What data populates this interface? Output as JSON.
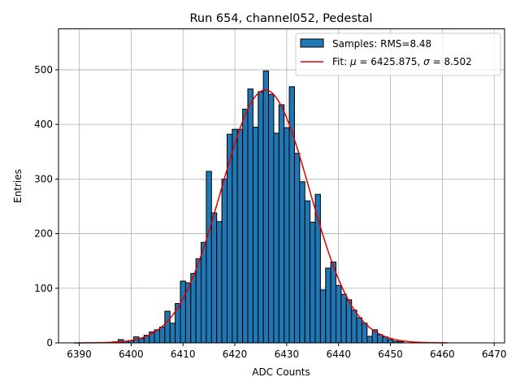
{
  "chart_data": {
    "type": "bar",
    "title": "Run 654, channel052, Pedestal",
    "xlabel": "ADC Counts",
    "ylabel": "Entries",
    "xlim": [
      6386.0,
      6472.0
    ],
    "ylim": [
      0,
      575
    ],
    "xticks": [
      6390,
      6400,
      6410,
      6420,
      6430,
      6440,
      6450,
      6460,
      6470
    ],
    "yticks": [
      0,
      100,
      200,
      300,
      400,
      500
    ],
    "grid": true,
    "legend_position": "top-right",
    "bin_width": 1,
    "bins": [
      {
        "x": 6397,
        "y": 2
      },
      {
        "x": 6398,
        "y": 6
      },
      {
        "x": 6399,
        "y": 3
      },
      {
        "x": 6400,
        "y": 4
      },
      {
        "x": 6401,
        "y": 11
      },
      {
        "x": 6402,
        "y": 8
      },
      {
        "x": 6403,
        "y": 14
      },
      {
        "x": 6404,
        "y": 20
      },
      {
        "x": 6405,
        "y": 24
      },
      {
        "x": 6406,
        "y": 29
      },
      {
        "x": 6407,
        "y": 58
      },
      {
        "x": 6408,
        "y": 36
      },
      {
        "x": 6409,
        "y": 72
      },
      {
        "x": 6410,
        "y": 113
      },
      {
        "x": 6411,
        "y": 110
      },
      {
        "x": 6412,
        "y": 127
      },
      {
        "x": 6413,
        "y": 154
      },
      {
        "x": 6414,
        "y": 184
      },
      {
        "x": 6415,
        "y": 314
      },
      {
        "x": 6416,
        "y": 238
      },
      {
        "x": 6417,
        "y": 222
      },
      {
        "x": 6418,
        "y": 300
      },
      {
        "x": 6419,
        "y": 382
      },
      {
        "x": 6420,
        "y": 391
      },
      {
        "x": 6421,
        "y": 391
      },
      {
        "x": 6422,
        "y": 428
      },
      {
        "x": 6423,
        "y": 465
      },
      {
        "x": 6424,
        "y": 395
      },
      {
        "x": 6425,
        "y": 460
      },
      {
        "x": 6426,
        "y": 498
      },
      {
        "x": 6427,
        "y": 455
      },
      {
        "x": 6428,
        "y": 384
      },
      {
        "x": 6429,
        "y": 436
      },
      {
        "x": 6430,
        "y": 394
      },
      {
        "x": 6431,
        "y": 469
      },
      {
        "x": 6432,
        "y": 347
      },
      {
        "x": 6433,
        "y": 295
      },
      {
        "x": 6434,
        "y": 260
      },
      {
        "x": 6435,
        "y": 221
      },
      {
        "x": 6436,
        "y": 272
      },
      {
        "x": 6437,
        "y": 97
      },
      {
        "x": 6438,
        "y": 137
      },
      {
        "x": 6439,
        "y": 148
      },
      {
        "x": 6440,
        "y": 105
      },
      {
        "x": 6441,
        "y": 89
      },
      {
        "x": 6442,
        "y": 79
      },
      {
        "x": 6443,
        "y": 60
      },
      {
        "x": 6444,
        "y": 46
      },
      {
        "x": 6445,
        "y": 36
      },
      {
        "x": 6446,
        "y": 12
      },
      {
        "x": 6447,
        "y": 24
      },
      {
        "x": 6448,
        "y": 15
      },
      {
        "x": 6449,
        "y": 11
      },
      {
        "x": 6450,
        "y": 6
      },
      {
        "x": 6451,
        "y": 3
      },
      {
        "x": 6452,
        "y": 2
      }
    ],
    "fit": {
      "mu": 6425.875,
      "sigma": 8.502,
      "amplitude": 463,
      "x_range": [
        6389,
        6461
      ]
    },
    "legend": [
      {
        "label": "Samples: RMS=8.48",
        "kind": "patch",
        "color": "#1f77b4"
      },
      {
        "label_prefix": "Fit: ",
        "mu_symbol": "μ",
        "mu_text": " = 6425.875, ",
        "sigma_symbol": "σ",
        "sigma_text": " = 8.502",
        "kind": "line",
        "color": "#e00000"
      }
    ],
    "colors": {
      "bars": "#1f77b4",
      "bar_edge": "#000000",
      "fit": "#e00000",
      "grid": "#b0b0b0"
    }
  }
}
